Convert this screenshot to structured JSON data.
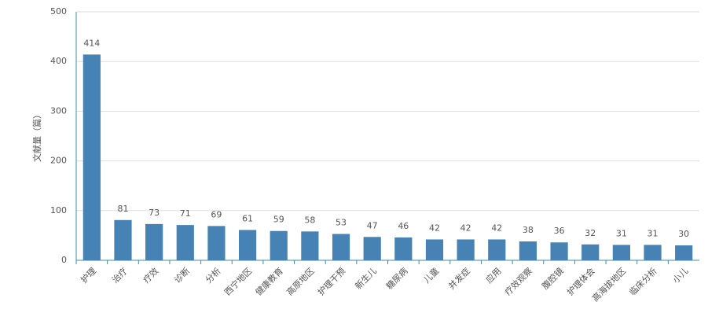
{
  "chart_data": {
    "type": "bar",
    "y_label": "文献量（篇）",
    "categories": [
      "护理",
      "治疗",
      "疗效",
      "诊断",
      "分析",
      "西宁地区",
      "健康教育",
      "高原地区",
      "护理干预",
      "新生儿",
      "糖尿病",
      "儿童",
      "并发症",
      "应用",
      "疗效观察",
      "腹腔镜",
      "护理体会",
      "高海拔地区",
      "临床分析",
      "小儿"
    ],
    "values": [
      414,
      81,
      73,
      71,
      69,
      61,
      59,
      58,
      53,
      47,
      46,
      42,
      42,
      42,
      38,
      36,
      32,
      31,
      31,
      30
    ],
    "color": "#4682b4",
    "ylim": [
      0,
      500
    ],
    "yticks": [
      0,
      100,
      200,
      300,
      400,
      500
    ],
    "grid": true
  }
}
